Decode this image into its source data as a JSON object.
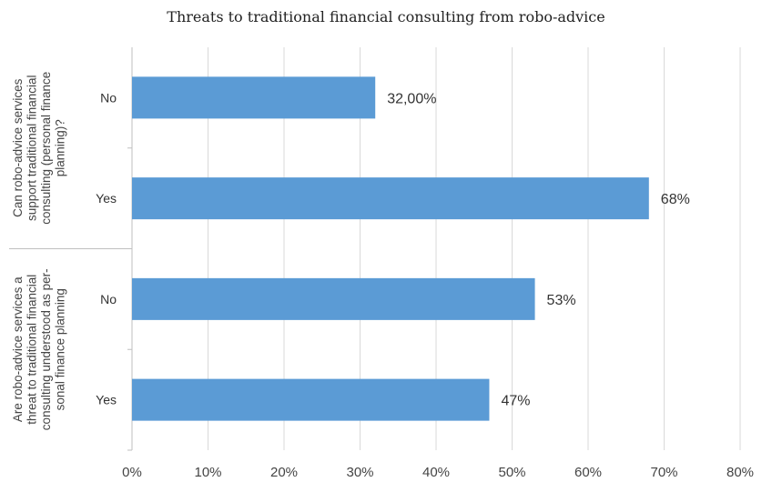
{
  "chart_data": {
    "type": "bar",
    "orientation": "horizontal",
    "title": "Threats to traditional financial consulting from robo-advice",
    "xlim": [
      0,
      80
    ],
    "x_ticks": [
      "0%",
      "10%",
      "20%",
      "30%",
      "40%",
      "50%",
      "60%",
      "70%",
      "80%"
    ],
    "grid": "vertical",
    "bar_color": "#5b9bd5",
    "groups": [
      {
        "label": [
          "Can robo-advice services",
          "support traditional financial",
          "consulting (personal finance",
          "planning)?"
        ],
        "categories": [
          "No",
          "Yes"
        ],
        "values": [
          32,
          68
        ],
        "data_labels": [
          "32,00%",
          "68%"
        ]
      },
      {
        "label": [
          "Are robo-advice services a",
          "threat to traditional financial",
          "consulting understood as per-",
          "sonal finance planning"
        ],
        "categories": [
          "No",
          "Yes"
        ],
        "values": [
          53,
          47
        ],
        "data_labels": [
          "53%",
          "47%"
        ]
      }
    ]
  }
}
